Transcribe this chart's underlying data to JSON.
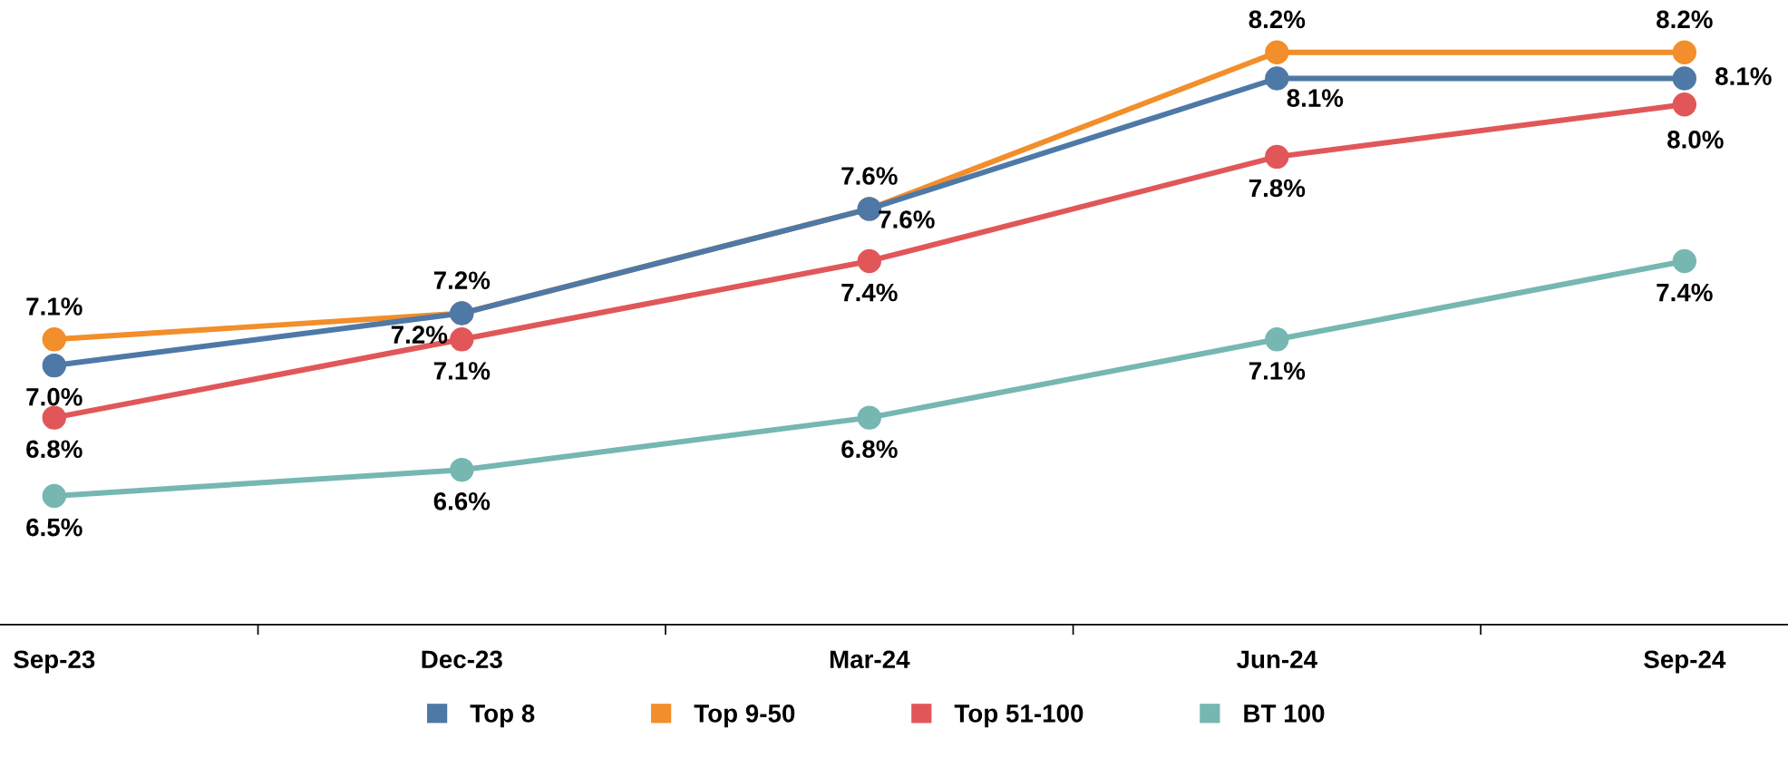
{
  "chart_data": {
    "type": "line",
    "categories": [
      "Sep-23",
      "Dec-23",
      "Mar-24",
      "Jun-24",
      "Sep-24"
    ],
    "series": [
      {
        "name": "Top 8",
        "color": "#4e79a7",
        "values": [
          7.0,
          7.2,
          7.6,
          8.1,
          8.1
        ],
        "value_labels": [
          "7.0%",
          "7.2%",
          "7.6%",
          "8.1%",
          "8.1%"
        ]
      },
      {
        "name": "Top 9-50",
        "color": "#f28e2b",
        "values": [
          7.1,
          7.2,
          7.6,
          8.2,
          8.2
        ],
        "value_labels": [
          "7.1%",
          "7.2%",
          "7.6%",
          "8.2%",
          "8.2%"
        ]
      },
      {
        "name": "Top 51-100",
        "color": "#e15759",
        "values": [
          6.8,
          7.1,
          7.4,
          7.8,
          8.0
        ],
        "value_labels": [
          "6.8%",
          "7.1%",
          "7.4%",
          "7.8%",
          "8.0%"
        ]
      },
      {
        "name": "BT 100",
        "color": "#76b7b2",
        "values": [
          6.5,
          6.6,
          6.8,
          7.1,
          7.4
        ],
        "value_labels": [
          "6.5%",
          "6.6%",
          "6.8%",
          "7.1%",
          "7.4%"
        ]
      }
    ],
    "marker": "circle",
    "line_style": "solid",
    "legend": "bottom",
    "tick_labels": "x"
  }
}
